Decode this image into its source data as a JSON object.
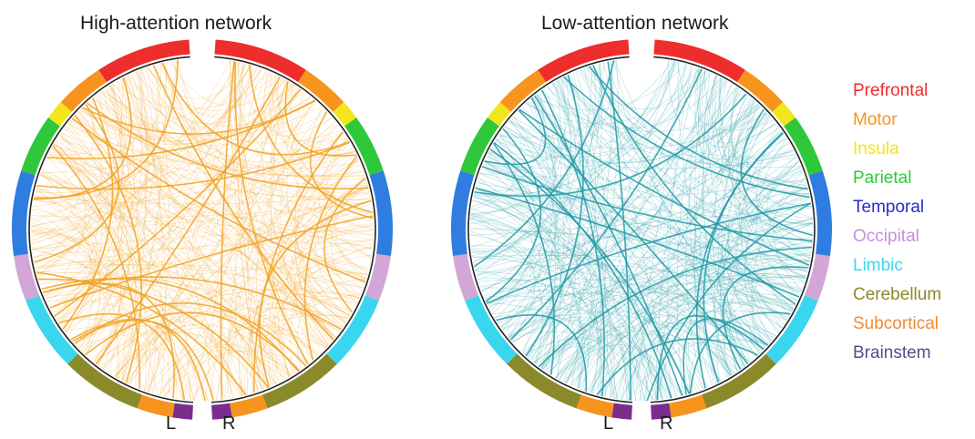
{
  "panels": [
    {
      "title": "High-attention network",
      "edge_color": "#f2a222",
      "hemisphere_labels": [
        "L",
        "R"
      ]
    },
    {
      "title": "Low-attention network",
      "edge_color": "#1f9aa6",
      "hemisphere_labels": [
        "L",
        "R"
      ]
    }
  ],
  "legend": [
    {
      "label": "Prefrontal",
      "color": "#ee2d2d"
    },
    {
      "label": "Motor",
      "color": "#f7941d"
    },
    {
      "label": "Insula",
      "color": "#f2e61c"
    },
    {
      "label": "Parietal",
      "color": "#2ec83a"
    },
    {
      "label": "Temporal",
      "color": "#2a2acb"
    },
    {
      "label": "Occipital",
      "color": "#c88ee0"
    },
    {
      "label": "Limbic",
      "color": "#3ad6ef"
    },
    {
      "label": "Cerebellum",
      "color": "#8b8a2a"
    },
    {
      "label": "Subcortical",
      "color": "#f28a33"
    },
    {
      "label": "Brainstem",
      "color": "#5b4a8c"
    }
  ]
}
